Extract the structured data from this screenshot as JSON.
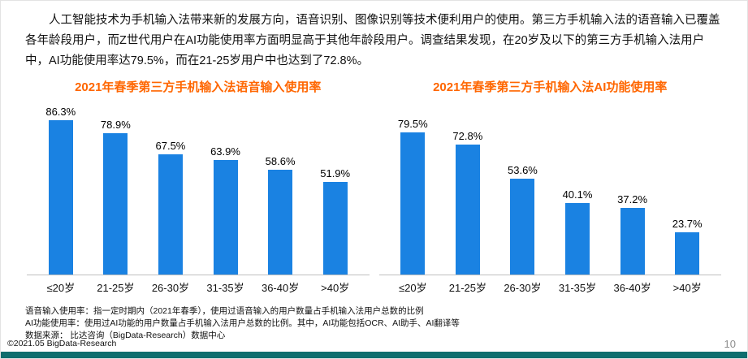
{
  "intro": "人工智能技术为手机输入法带来新的发展方向，语音识别、图像识别等技术便利用户的使用。第三方手机输入法的语音输入已覆盖各年龄段用户，而Z世代用户在AI功能使用率方面明显高于其他年龄段用户。调查结果发现，在20岁及以下的第三方手机输入法用户中，AI功能使用率达79.5%，而在21-25岁用户中也达到了72.8%。",
  "chart_data": [
    {
      "type": "bar",
      "title": "2021年春季第三方手机输入法语音输入使用率",
      "categories": [
        "≤20岁",
        "21-25岁",
        "26-30岁",
        "31-35岁",
        "36-40岁",
        ">40岁"
      ],
      "values": [
        86.3,
        78.9,
        67.5,
        63.9,
        58.6,
        51.9
      ],
      "data_labels": [
        "86.3%",
        "78.9%",
        "67.5%",
        "63.9%",
        "58.6%",
        "51.9%"
      ],
      "ylim": [
        0,
        100
      ],
      "bar_color": "#1a82e2",
      "grid": false,
      "legend": "none"
    },
    {
      "type": "bar",
      "title": "2021年春季第三方手机输入法AI功能使用率",
      "categories": [
        "≤20岁",
        "21-25岁",
        "26-30岁",
        "31-35岁",
        "36-40岁",
        ">40岁"
      ],
      "values": [
        79.5,
        72.8,
        53.6,
        40.1,
        37.2,
        23.7
      ],
      "data_labels": [
        "79.5%",
        "72.8%",
        "53.6%",
        "40.1%",
        "37.2%",
        "23.7%"
      ],
      "ylim": [
        0,
        100
      ],
      "bar_color": "#1a82e2",
      "grid": false,
      "legend": "none"
    }
  ],
  "footnotes": [
    "语音输入使用率：指一定时期内（2021年春季），使用过语音输入的用户数量占手机输入法用户总数的比例",
    "AI功能使用率：使用过AI功能的用户数量占手机输入法用户总数的比例。其中，AI功能包括OCR、AI助手、AI翻译等",
    "数据来源：  比达咨询（BigData-Research）数据中心"
  ],
  "copyright": "©2021.05 BigData-Research",
  "page_number": "10",
  "colors": {
    "title_orange": "#FF6600",
    "bar_blue": "#1a82e2",
    "footer_teal": "#0e6e6e"
  }
}
